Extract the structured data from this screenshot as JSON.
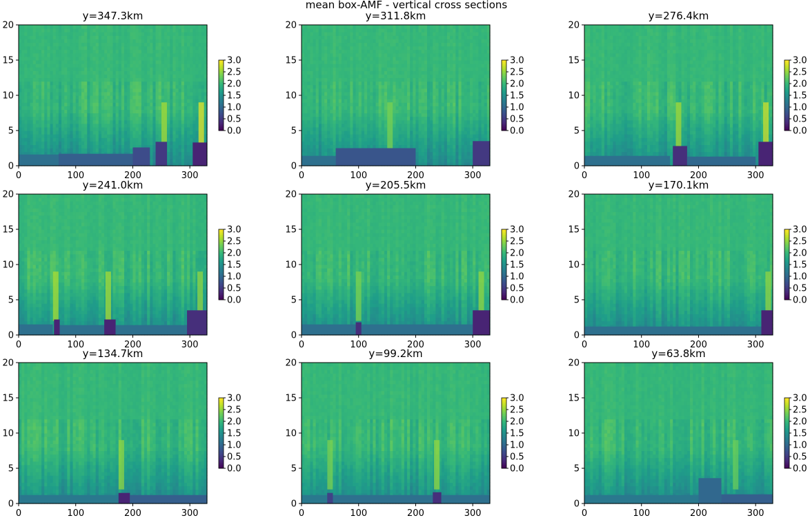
{
  "figure": {
    "suptitle": "mean box-AMF - vertical cross sections",
    "colors": {
      "viridis": [
        "#440154",
        "#482878",
        "#3e4989",
        "#31688e",
        "#26828e",
        "#1f9e89",
        "#35b779",
        "#6ece58",
        "#b5de2b",
        "#fde725"
      ]
    }
  },
  "chart_data": [
    {
      "type": "heatmap",
      "title": "y=347.3km",
      "xlim": [
        0,
        330
      ],
      "ylim": [
        0,
        20
      ],
      "xticks": [
        0,
        100,
        200,
        300
      ],
      "yticks": [
        0,
        5,
        10,
        15,
        20
      ],
      "clim": [
        0,
        3
      ],
      "cbar_ticks": [
        "0.0",
        "0.5",
        "1.0",
        "1.5",
        "2.0",
        "2.5",
        "3.0"
      ],
      "colormap": "viridis",
      "background_value": 2.0,
      "low_layers": [
        {
          "x": [
            0,
            70
          ],
          "top": 1.6,
          "value": 1.1
        },
        {
          "x": [
            70,
            200
          ],
          "top": 1.7,
          "value": 0.9
        },
        {
          "x": [
            200,
            230
          ],
          "top": 2.6,
          "value": 0.7
        },
        {
          "x": [
            240,
            260
          ],
          "top": 3.4,
          "value": 0.5
        },
        {
          "x": [
            305,
            330
          ],
          "top": 3.3,
          "value": 0.3
        }
      ],
      "streaks": [
        {
          "x": 255,
          "value": 2.6
        },
        {
          "x": 320,
          "value": 2.9
        }
      ]
    },
    {
      "type": "heatmap",
      "title": "y=311.8km",
      "xlim": [
        0,
        330
      ],
      "ylim": [
        0,
        20
      ],
      "xticks": [
        0,
        100,
        200,
        300
      ],
      "yticks": [
        0,
        5,
        10,
        15,
        20
      ],
      "clim": [
        0,
        3
      ],
      "cbar_ticks": [
        "0.0",
        "0.5",
        "1.0",
        "1.5",
        "2.0",
        "2.5",
        "3.0"
      ],
      "colormap": "viridis",
      "background_value": 2.0,
      "low_layers": [
        {
          "x": [
            0,
            60
          ],
          "top": 1.4,
          "value": 1.1
        },
        {
          "x": [
            60,
            200
          ],
          "top": 2.5,
          "value": 0.8
        },
        {
          "x": [
            300,
            330
          ],
          "top": 3.5,
          "value": 0.5
        }
      ],
      "streaks": [
        {
          "x": 155,
          "value": 2.4
        }
      ]
    },
    {
      "type": "heatmap",
      "title": "y=276.4km",
      "xlim": [
        0,
        330
      ],
      "ylim": [
        0,
        20
      ],
      "xticks": [
        0,
        100,
        200,
        300
      ],
      "yticks": [
        0,
        5,
        10,
        15,
        20
      ],
      "clim": [
        0,
        3
      ],
      "cbar_ticks": [
        "0.0",
        "0.5",
        "1.0",
        "1.5",
        "2.0",
        "2.5",
        "3.0"
      ],
      "colormap": "viridis",
      "background_value": 2.0,
      "low_layers": [
        {
          "x": [
            0,
            150
          ],
          "top": 1.4,
          "value": 1.1
        },
        {
          "x": [
            155,
            180
          ],
          "top": 2.8,
          "value": 0.4
        },
        {
          "x": [
            180,
            300
          ],
          "top": 1.3,
          "value": 1.0
        },
        {
          "x": [
            305,
            330
          ],
          "top": 3.4,
          "value": 0.3
        }
      ],
      "streaks": [
        {
          "x": 165,
          "value": 2.6
        },
        {
          "x": 318,
          "value": 2.8
        }
      ]
    },
    {
      "type": "heatmap",
      "title": "y=241.0km",
      "xlim": [
        0,
        330
      ],
      "ylim": [
        0,
        20
      ],
      "xticks": [
        0,
        100,
        200,
        300
      ],
      "yticks": [
        0,
        5,
        10,
        15,
        20
      ],
      "clim": [
        0,
        3
      ],
      "cbar_ticks": [
        "0.0",
        "0.5",
        "1.0",
        "1.5",
        "2.0",
        "2.5",
        "3.0"
      ],
      "colormap": "viridis",
      "background_value": 2.0,
      "low_layers": [
        {
          "x": [
            0,
            60
          ],
          "top": 1.5,
          "value": 1.1
        },
        {
          "x": [
            62,
            72
          ],
          "top": 2.2,
          "value": 0.3
        },
        {
          "x": [
            72,
            150
          ],
          "top": 1.4,
          "value": 1.1
        },
        {
          "x": [
            150,
            170
          ],
          "top": 2.2,
          "value": 0.3
        },
        {
          "x": [
            170,
            295
          ],
          "top": 1.4,
          "value": 1.1
        },
        {
          "x": [
            295,
            330
          ],
          "top": 3.5,
          "value": 0.4
        }
      ],
      "streaks": [
        {
          "x": 65,
          "value": 2.6
        },
        {
          "x": 157,
          "value": 2.6
        },
        {
          "x": 318,
          "value": 2.5
        }
      ]
    },
    {
      "type": "heatmap",
      "title": "y=205.5km",
      "xlim": [
        0,
        330
      ],
      "ylim": [
        0,
        20
      ],
      "xticks": [
        0,
        100,
        200,
        300
      ],
      "yticks": [
        0,
        5,
        10,
        15,
        20
      ],
      "clim": [
        0,
        3
      ],
      "cbar_ticks": [
        "0.0",
        "0.5",
        "1.0",
        "1.5",
        "2.0",
        "2.5",
        "3.0"
      ],
      "colormap": "viridis",
      "background_value": 2.0,
      "low_layers": [
        {
          "x": [
            0,
            95
          ],
          "top": 1.5,
          "value": 1.1
        },
        {
          "x": [
            95,
            105
          ],
          "top": 1.8,
          "value": 0.4
        },
        {
          "x": [
            105,
            300
          ],
          "top": 1.5,
          "value": 1.1
        },
        {
          "x": [
            300,
            330
          ],
          "top": 3.5,
          "value": 0.3
        }
      ],
      "streaks": [
        {
          "x": 100,
          "value": 2.4
        },
        {
          "x": 315,
          "value": 2.5
        }
      ]
    },
    {
      "type": "heatmap",
      "title": "y=170.1km",
      "xlim": [
        0,
        330
      ],
      "ylim": [
        0,
        20
      ],
      "xticks": [
        0,
        100,
        200,
        300
      ],
      "yticks": [
        0,
        5,
        10,
        15,
        20
      ],
      "clim": [
        0,
        3
      ],
      "cbar_ticks": [
        "0.0",
        "0.5",
        "1.0",
        "1.5",
        "2.0",
        "2.5",
        "3.0"
      ],
      "colormap": "viridis",
      "background_value": 2.0,
      "low_layers": [
        {
          "x": [
            0,
            310
          ],
          "top": 1.2,
          "value": 1.1
        },
        {
          "x": [
            310,
            330
          ],
          "top": 3.5,
          "value": 0.3
        }
      ],
      "streaks": [
        {
          "x": 322,
          "value": 2.5
        }
      ]
    },
    {
      "type": "heatmap",
      "title": "y=134.7km",
      "xlim": [
        0,
        330
      ],
      "ylim": [
        0,
        20
      ],
      "xticks": [
        0,
        100,
        200,
        300
      ],
      "yticks": [
        0,
        5,
        10,
        15,
        20
      ],
      "clim": [
        0,
        3
      ],
      "cbar_ticks": [
        "0.0",
        "0.5",
        "1.0",
        "1.5",
        "2.0",
        "2.5",
        "3.0"
      ],
      "colormap": "viridis",
      "background_value": 2.0,
      "low_layers": [
        {
          "x": [
            0,
            175
          ],
          "top": 1.2,
          "value": 1.2
        },
        {
          "x": [
            175,
            195
          ],
          "top": 1.5,
          "value": 0.3
        },
        {
          "x": [
            195,
            330
          ],
          "top": 1.2,
          "value": 0.9
        }
      ],
      "streaks": [
        {
          "x": 180,
          "value": 2.5
        }
      ]
    },
    {
      "type": "heatmap",
      "title": "y=99.2km",
      "xlim": [
        0,
        330
      ],
      "ylim": [
        0,
        20
      ],
      "xticks": [
        0,
        100,
        200,
        300
      ],
      "yticks": [
        0,
        5,
        10,
        15,
        20
      ],
      "clim": [
        0,
        3
      ],
      "cbar_ticks": [
        "0.0",
        "0.5",
        "1.0",
        "1.5",
        "2.0",
        "2.5",
        "3.0"
      ],
      "colormap": "viridis",
      "background_value": 2.0,
      "low_layers": [
        {
          "x": [
            0,
            45
          ],
          "top": 1.2,
          "value": 1.2
        },
        {
          "x": [
            45,
            55
          ],
          "top": 1.5,
          "value": 0.6
        },
        {
          "x": [
            55,
            230
          ],
          "top": 1.2,
          "value": 1.1
        },
        {
          "x": [
            230,
            245
          ],
          "top": 1.6,
          "value": 0.4
        },
        {
          "x": [
            245,
            330
          ],
          "top": 1.2,
          "value": 1.1
        }
      ],
      "streaks": [
        {
          "x": 50,
          "value": 2.4
        },
        {
          "x": 237,
          "value": 2.5
        }
      ]
    },
    {
      "type": "heatmap",
      "title": "y=63.8km",
      "xlim": [
        0,
        330
      ],
      "ylim": [
        0,
        20
      ],
      "xticks": [
        0,
        100,
        200,
        300
      ],
      "yticks": [
        0,
        5,
        10,
        15,
        20
      ],
      "clim": [
        0,
        3
      ],
      "cbar_ticks": [
        "0.0",
        "0.5",
        "1.0",
        "1.5",
        "2.0",
        "2.5",
        "3.0"
      ],
      "colormap": "viridis",
      "background_value": 2.0,
      "low_layers": [
        {
          "x": [
            0,
            200
          ],
          "top": 1.2,
          "value": 1.2
        },
        {
          "x": [
            200,
            240
          ],
          "top": 3.6,
          "value": 1.0
        },
        {
          "x": [
            240,
            330
          ],
          "top": 1.3,
          "value": 0.9
        }
      ],
      "streaks": [
        {
          "x": 265,
          "value": 2.3
        }
      ]
    }
  ]
}
